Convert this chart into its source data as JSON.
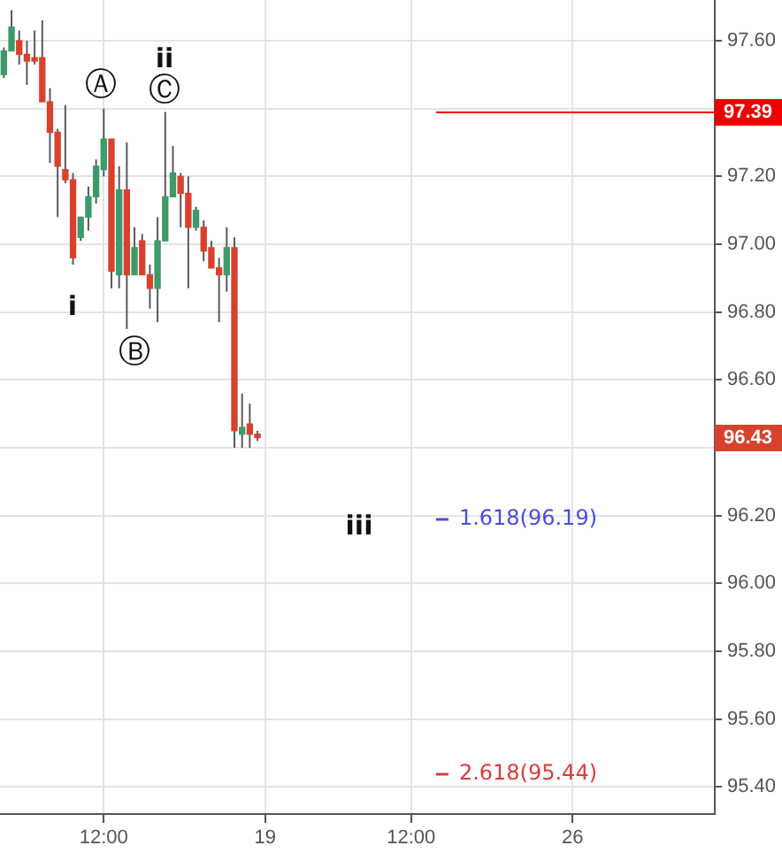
{
  "chart_data": {
    "type": "candlestick",
    "categories": [
      null,
      null,
      null,
      null,
      null,
      null,
      null,
      null,
      null,
      null,
      null,
      null,
      null,
      "12:00",
      null,
      null,
      null,
      null,
      null,
      null,
      null,
      null,
      null,
      null,
      null,
      null,
      null,
      null,
      null,
      null,
      null,
      null,
      null,
      null,
      "19",
      null,
      null,
      null,
      null,
      null,
      null,
      null,
      null,
      null,
      null,
      null,
      null,
      null,
      null,
      null,
      null,
      null,
      null,
      "12:00",
      null,
      null,
      null,
      null,
      null,
      null,
      null,
      null,
      null,
      null,
      null,
      null,
      null,
      null,
      null,
      null,
      null,
      null,
      null,
      null,
      "26",
      null,
      null,
      null,
      null,
      null,
      null,
      null,
      null,
      null,
      null,
      null,
      null,
      null,
      null,
      null,
      null,
      null,
      null
    ],
    "ohlc": [
      [
        97.5,
        97.58,
        97.49,
        97.57
      ],
      [
        97.57,
        97.69,
        97.57,
        97.64
      ],
      [
        97.6,
        97.63,
        97.53,
        97.56
      ],
      [
        97.56,
        97.6,
        97.47,
        97.54
      ],
      [
        97.55,
        97.63,
        97.53,
        97.54
      ],
      [
        97.55,
        97.66,
        97.42,
        97.42
      ],
      [
        97.42,
        97.46,
        97.24,
        97.33
      ],
      [
        97.33,
        97.34,
        97.08,
        97.23
      ],
      [
        97.22,
        97.41,
        97.18,
        97.19
      ],
      [
        97.19,
        97.21,
        96.94,
        96.96
      ],
      [
        97.02,
        97.08,
        97.01,
        97.08
      ],
      [
        97.08,
        97.17,
        97.04,
        97.14
      ],
      [
        97.14,
        97.25,
        97.12,
        97.23
      ],
      [
        97.22,
        97.4,
        97.2,
        97.31
      ],
      [
        97.31,
        97.31,
        96.87,
        96.92
      ],
      [
        96.91,
        97.23,
        96.87,
        97.16
      ],
      [
        97.16,
        97.3,
        96.75,
        96.91
      ],
      [
        96.91,
        97.05,
        96.91,
        96.99
      ],
      [
        97.01,
        97.03,
        96.91,
        96.91
      ],
      [
        96.91,
        96.94,
        96.81,
        96.87
      ],
      [
        96.87,
        97.08,
        96.77,
        97.01
      ],
      [
        97.01,
        97.39,
        97.01,
        97.14
      ],
      [
        97.14,
        97.29,
        97.14,
        97.21
      ],
      [
        97.2,
        97.21,
        97.05,
        97.15
      ],
      [
        97.15,
        97.2,
        96.87,
        97.05
      ],
      [
        97.05,
        97.11,
        97.04,
        97.1
      ],
      [
        97.05,
        97.07,
        96.95,
        96.98
      ],
      [
        96.99,
        97.01,
        96.93,
        96.93
      ],
      [
        96.93,
        96.96,
        96.77,
        96.91
      ],
      [
        96.91,
        97.05,
        96.86,
        96.99
      ],
      [
        96.99,
        97.02,
        96.4,
        96.45
      ],
      [
        96.44,
        96.56,
        96.4,
        96.46
      ],
      [
        96.47,
        96.53,
        96.4,
        96.44
      ],
      [
        96.44,
        96.45,
        96.42,
        96.43
      ],
      null,
      null,
      null,
      null,
      null,
      null,
      null,
      null,
      null,
      null,
      null,
      null,
      null,
      null,
      null,
      null,
      null,
      null,
      null,
      null,
      null,
      null,
      null,
      null,
      null,
      null,
      null,
      null,
      null,
      null,
      null,
      null,
      null,
      null,
      null,
      null,
      null,
      null,
      null,
      null,
      null,
      null,
      null,
      null,
      null,
      null,
      null,
      null,
      null,
      null,
      null,
      null,
      null,
      null,
      null,
      null,
      null,
      null,
      null
    ],
    "colors": [
      "#3d9a6a",
      "#3d9a6a",
      "#d8412d",
      "#d8412d",
      "#d8412d",
      "#d8412d",
      "#d8412d",
      "#d8412d",
      "#d8412d",
      "#d8412d",
      "#3d9a6a",
      "#3d9a6a",
      "#3d9a6a",
      "#3d9a6a",
      "#d8412d",
      "#3d9a6a",
      "#d8412d",
      "#3d9a6a",
      "#d8412d",
      "#d8412d",
      "#3d9a6a",
      "#3d9a6a",
      "#3d9a6a",
      "#d8412d",
      "#d8412d",
      "#3d9a6a",
      "#d8412d",
      "#d8412d",
      "#d8412d",
      "#3d9a6a",
      "#d8412d",
      "#3d9a6a",
      "#d8412d",
      "#d8412d",
      null,
      null,
      null,
      null,
      null,
      null,
      null,
      null,
      null,
      null,
      null,
      null,
      null,
      null,
      null,
      null,
      null,
      null,
      null,
      null,
      null,
      null,
      null,
      null,
      null,
      null,
      null,
      null,
      null,
      null,
      null,
      null,
      null,
      null,
      null,
      null,
      null,
      null,
      null,
      null,
      null,
      null,
      null,
      null,
      null,
      null,
      null,
      null,
      null,
      null,
      null,
      null,
      null,
      null,
      null,
      null,
      null,
      null,
      null
    ],
    "ylim": [
      95.32,
      97.72
    ],
    "yticks": [
      {
        "value": 95.4,
        "label": "95.40"
      },
      {
        "value": 95.6,
        "label": "95.60"
      },
      {
        "value": 95.8,
        "label": "95.80"
      },
      {
        "value": 96.0,
        "label": "96.00"
      },
      {
        "value": 96.2,
        "label": "96.20"
      },
      {
        "value": 96.4,
        "label": null
      },
      {
        "value": 96.6,
        "label": "96.60"
      },
      {
        "value": 96.8,
        "label": "96.80"
      },
      {
        "value": 97.0,
        "label": "97.00"
      },
      {
        "value": 97.2,
        "label": "97.20"
      },
      {
        "value": 97.4,
        "label": null
      },
      {
        "value": 97.6,
        "label": "97.60"
      }
    ],
    "grid": true,
    "ref_lines": [
      {
        "axis": "y",
        "value": 97.39,
        "label": "97.39",
        "color": "#f00000"
      },
      {
        "axis": "y",
        "value": 96.19,
        "label": "1.618(96.19)",
        "color": "#4a4ae0"
      },
      {
        "axis": "y",
        "value": 95.44,
        "label": "2.618(95.44)",
        "color": "#e03a3a"
      }
    ],
    "annotations": [
      "Ⓐ",
      "ii",
      "Ⓒ",
      "i",
      "Ⓑ",
      "iii",
      "96.43"
    ]
  }
}
